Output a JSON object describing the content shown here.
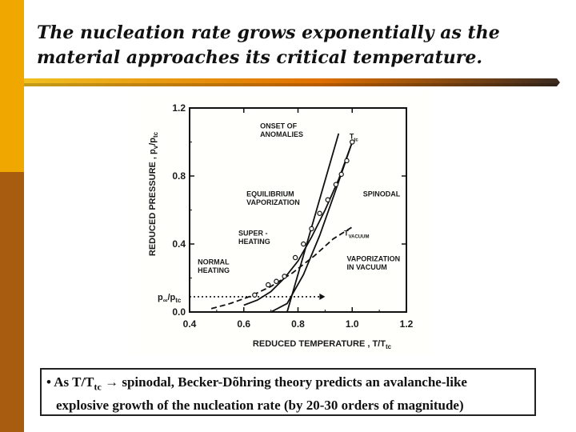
{
  "slide": {
    "title_line1": "The nucleation rate grows exponentially as the",
    "title_line2": "material approaches its critical temperature.",
    "accent_colors": {
      "orange": "#f0a800",
      "brown": "#a85c10",
      "rule_dark": "#3a2a20"
    }
  },
  "caption": {
    "bullet": "•",
    "prefix": "As T/T",
    "sub": "tc",
    "arrow": "→",
    "rest": " spinodal, Becker-Dõhring theory predicts an avalanche-like",
    "line2": "explosive growth of the nucleation rate (by 20-30 orders of magnitude)"
  },
  "chart_data": {
    "type": "line",
    "xlabel": "REDUCED TEMPERATURE ,  T/T",
    "xlabel_sub": "tc",
    "ylabel": "REDUCED PRESSURE ,  p",
    "ylabel_sub": "v",
    "ylabel_tail": "/p",
    "ylabel_tail_sub": "tc",
    "xlim": [
      0.4,
      1.2
    ],
    "ylim": [
      0.0,
      1.2
    ],
    "x_ticks": [
      0.4,
      0.6,
      0.8,
      1.0,
      1.2
    ],
    "x_tick_labels": [
      "0.4",
      "0.6",
      "0.8",
      "1.0",
      "1.2"
    ],
    "y_ticks": [
      0.0,
      0.4,
      0.8,
      1.2
    ],
    "y_tick_labels": [
      "0.0",
      "0.4",
      "0.8",
      "1.2"
    ],
    "pinf_label": "p",
    "pinf_sub": "∞",
    "pinf_tail": "/p",
    "pinf_tail_sub": "tc",
    "pinf_value": 0.09,
    "series": [
      {
        "name": "EQUILIBRIUM VAPORIZATION",
        "style": "solid",
        "x": [
          0.6,
          0.65,
          0.7,
          0.75,
          0.8,
          0.85,
          0.9,
          0.95,
          1.0
        ],
        "y": [
          0.04,
          0.07,
          0.12,
          0.2,
          0.3,
          0.44,
          0.6,
          0.78,
          1.0
        ]
      },
      {
        "name": "SPINODAL",
        "style": "solid",
        "x": [
          0.62,
          0.7,
          0.76,
          0.82,
          0.88,
          0.94,
          0.97,
          1.0
        ],
        "y": [
          0.0,
          0.0,
          0.05,
          0.22,
          0.45,
          0.72,
          0.86,
          1.0
        ]
      },
      {
        "name": "VAPORIZATION IN VACUUM",
        "style": "dashed",
        "x": [
          0.48,
          0.55,
          0.62,
          0.7,
          0.78,
          0.86,
          0.93,
          1.0
        ],
        "y": [
          0.02,
          0.05,
          0.09,
          0.15,
          0.23,
          0.33,
          0.43,
          0.5
        ]
      },
      {
        "name": "ONSET OF ANOMALIES",
        "style": "solid",
        "x": [
          0.76,
          0.95
        ],
        "y": [
          0.0,
          1.05
        ]
      },
      {
        "name": "NORMAL HEATING",
        "style": "dotted",
        "x": [
          0.4,
          0.9
        ],
        "y": [
          0.09,
          0.09
        ]
      }
    ],
    "markers": {
      "x": [
        0.64,
        0.69,
        0.72,
        0.75,
        0.79,
        0.82,
        0.85,
        0.88,
        0.91,
        0.94,
        0.96,
        0.98,
        1.0
      ],
      "y": [
        0.1,
        0.16,
        0.18,
        0.21,
        0.32,
        0.4,
        0.49,
        0.58,
        0.66,
        0.75,
        0.81,
        0.89,
        1.0
      ]
    },
    "annotations": [
      {
        "text": "ONSET OF",
        "x": 0.66,
        "y": 1.08
      },
      {
        "text": "ANOMALIES",
        "x": 0.66,
        "y": 1.03
      },
      {
        "text": "EQUILIBRIUM",
        "x": 0.61,
        "y": 0.68
      },
      {
        "text": "VAPORIZATION",
        "x": 0.61,
        "y": 0.63
      },
      {
        "text": "SPINODAL",
        "x": 1.04,
        "y": 0.68
      },
      {
        "text": "SUPER -",
        "x": 0.58,
        "y": 0.45
      },
      {
        "text": "HEATING",
        "x": 0.58,
        "y": 0.4
      },
      {
        "text": "NORMAL",
        "x": 0.43,
        "y": 0.28
      },
      {
        "text": "HEATING",
        "x": 0.43,
        "y": 0.23
      },
      {
        "text": "VAPORIZATION",
        "x": 0.98,
        "y": 0.3
      },
      {
        "text": "IN VACUUM",
        "x": 0.98,
        "y": 0.25
      },
      {
        "text": "T",
        "x": 0.99,
        "y": 1.02,
        "sub": "tc"
      },
      {
        "text": "T",
        "x": 0.97,
        "y": 0.45,
        "sub": "VACUUM"
      }
    ]
  }
}
